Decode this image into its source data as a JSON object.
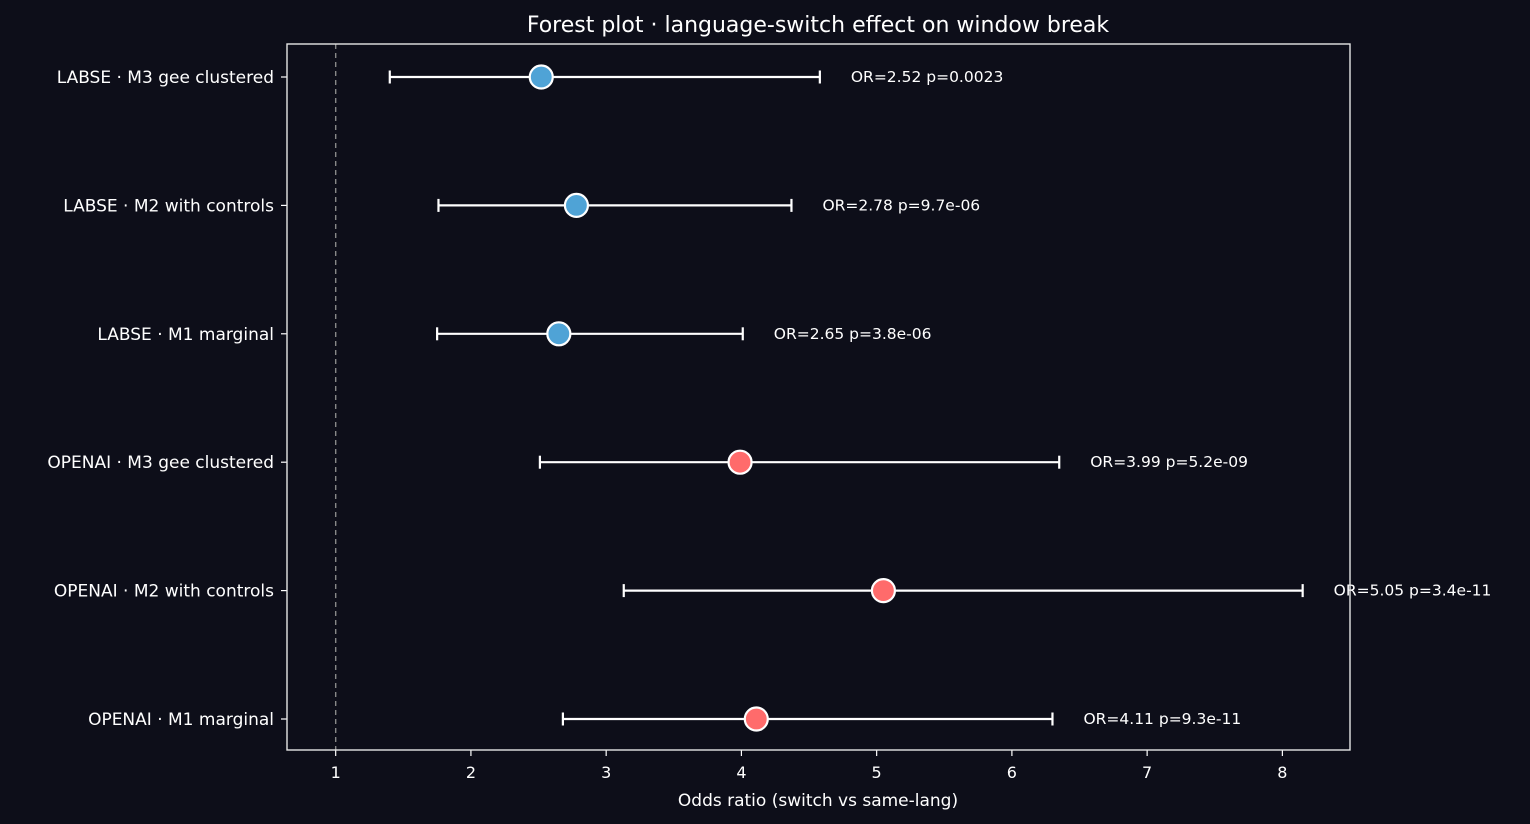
{
  "chart_data": {
    "type": "forest",
    "title": "Forest plot  ·  language-switch effect on window break",
    "xlabel": "Odds ratio (switch vs same-lang)",
    "ylabel": "",
    "xlim": [
      0.64,
      8.5
    ],
    "xticks": [
      "1",
      "2",
      "3",
      "4",
      "5",
      "6",
      "7",
      "8"
    ],
    "reference_line": 1,
    "grid": false,
    "rows": [
      {
        "label": "LABSE · M3 gee clustered",
        "or": 2.52,
        "ci_low": 1.4,
        "ci_high": 4.58,
        "annotation": "OR=2.52  p=0.0023",
        "group": "LABSE"
      },
      {
        "label": "LABSE · M2 with controls",
        "or": 2.78,
        "ci_low": 1.76,
        "ci_high": 4.37,
        "annotation": "OR=2.78  p=9.7e-06",
        "group": "LABSE"
      },
      {
        "label": "LABSE · M1 marginal",
        "or": 2.65,
        "ci_low": 1.75,
        "ci_high": 4.01,
        "annotation": "OR=2.65  p=3.8e-06",
        "group": "LABSE"
      },
      {
        "label": "OPENAI · M3 gee clustered",
        "or": 3.99,
        "ci_low": 2.51,
        "ci_high": 6.35,
        "annotation": "OR=3.99  p=5.2e-09",
        "group": "OPENAI"
      },
      {
        "label": "OPENAI · M2 with controls",
        "or": 5.05,
        "ci_low": 3.13,
        "ci_high": 8.15,
        "annotation": "OR=5.05  p=3.4e-11",
        "group": "OPENAI"
      },
      {
        "label": "OPENAI · M1 marginal",
        "or": 4.11,
        "ci_low": 2.68,
        "ci_high": 6.3,
        "annotation": "OR=4.11  p=9.3e-11",
        "group": "OPENAI"
      }
    ],
    "colors": {
      "LABSE": "#4fa3d6",
      "OPENAI": "#ff6b6b",
      "background": "#0d0e19",
      "foreground": "#ffffff",
      "reference_line": "#888888"
    }
  }
}
